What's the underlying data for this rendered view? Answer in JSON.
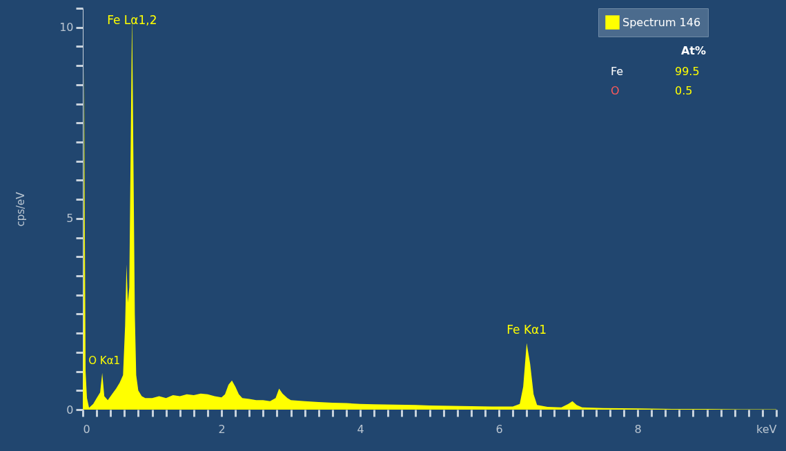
{
  "chart_data": {
    "type": "area",
    "ylabel": "cps/eV",
    "x": [
      0.0,
      0.01,
      0.02,
      0.03,
      0.04,
      0.06,
      0.09,
      0.15,
      0.2,
      0.25,
      0.28,
      0.31,
      0.36,
      0.42,
      0.48,
      0.53,
      0.58,
      0.61,
      0.63,
      0.65,
      0.67,
      0.69,
      0.71,
      0.73,
      0.75,
      0.77,
      0.8,
      0.85,
      0.9,
      1.0,
      1.1,
      1.2,
      1.3,
      1.4,
      1.5,
      1.6,
      1.7,
      1.8,
      1.9,
      2.0,
      2.05,
      2.1,
      2.15,
      2.2,
      2.25,
      2.3,
      2.4,
      2.5,
      2.6,
      2.7,
      2.78,
      2.83,
      2.88,
      2.95,
      3.0,
      3.2,
      3.4,
      3.6,
      3.8,
      4.0,
      4.2,
      4.5,
      4.8,
      5.0,
      5.3,
      5.6,
      5.9,
      6.2,
      6.3,
      6.35,
      6.4,
      6.45,
      6.5,
      6.55,
      6.7,
      6.9,
      7.0,
      7.06,
      7.12,
      7.2,
      7.5,
      8.0,
      8.5,
      9.0,
      9.5,
      10.0
    ],
    "series": [
      {
        "name": "Spectrum 146",
        "color": "#ffff00",
        "values": [
          0,
          1.8,
          9.0,
          4.5,
          1.0,
          0.3,
          0.05,
          0.15,
          0.3,
          0.45,
          0.96,
          0.35,
          0.25,
          0.4,
          0.55,
          0.7,
          0.9,
          2.2,
          3.8,
          2.8,
          3.2,
          6.8,
          10.4,
          6.5,
          2.5,
          0.9,
          0.5,
          0.35,
          0.3,
          0.3,
          0.35,
          0.3,
          0.38,
          0.35,
          0.4,
          0.38,
          0.42,
          0.4,
          0.35,
          0.32,
          0.4,
          0.65,
          0.76,
          0.6,
          0.4,
          0.3,
          0.28,
          0.25,
          0.25,
          0.22,
          0.3,
          0.55,
          0.42,
          0.3,
          0.25,
          0.22,
          0.2,
          0.18,
          0.17,
          0.15,
          0.14,
          0.13,
          0.12,
          0.11,
          0.1,
          0.09,
          0.08,
          0.08,
          0.15,
          0.6,
          1.74,
          1.2,
          0.4,
          0.12,
          0.07,
          0.06,
          0.15,
          0.22,
          0.12,
          0.06,
          0.04,
          0.03,
          0.02,
          0.02,
          0.01,
          0.01
        ]
      }
    ],
    "xlim": [
      0,
      10
    ],
    "xticks": [
      0,
      {
        "value": 0.2,
        "label": null
      },
      {
        "value": 0.4,
        "label": null
      },
      {
        "value": 0.6,
        "label": null
      },
      {
        "value": 0.8,
        "label": null
      },
      {
        "value": 1,
        "label": null
      },
      {
        "value": 1.2,
        "label": null
      },
      {
        "value": 1.4,
        "label": null
      },
      {
        "value": 1.6,
        "label": null
      },
      {
        "value": 1.8,
        "label": null
      },
      2,
      {
        "value": 2.2,
        "label": null
      },
      {
        "value": 2.4,
        "label": null
      },
      {
        "value": 2.6,
        "label": null
      },
      {
        "value": 2.8,
        "label": null
      },
      {
        "value": 3,
        "label": null
      },
      {
        "value": 3.2,
        "label": null
      },
      {
        "value": 3.4,
        "label": null
      },
      {
        "value": 3.6,
        "label": null
      },
      {
        "value": 3.8,
        "label": null
      },
      4,
      {
        "value": 4.2,
        "label": null
      },
      {
        "value": 4.4,
        "label": null
      },
      {
        "value": 4.6,
        "label": null
      },
      {
        "value": 4.8,
        "label": null
      },
      {
        "value": 5,
        "label": null
      },
      {
        "value": 5.2,
        "label": null
      },
      {
        "value": 5.4,
        "label": null
      },
      {
        "value": 5.6,
        "label": null
      },
      {
        "value": 5.8,
        "label": null
      },
      6,
      {
        "value": 6.2,
        "label": null
      },
      {
        "value": 6.4,
        "label": null
      },
      {
        "value": 6.6,
        "label": null
      },
      {
        "value": 6.8,
        "label": null
      },
      {
        "value": 7,
        "label": null
      },
      {
        "value": 7.2,
        "label": null
      },
      {
        "value": 7.4,
        "label": null
      },
      {
        "value": 7.6,
        "label": null
      },
      {
        "value": 7.8,
        "label": null
      },
      8,
      {
        "value": 8.2,
        "label": null
      },
      {
        "value": 8.4,
        "label": null
      },
      {
        "value": 8.6,
        "label": null
      },
      {
        "value": 8.8,
        "label": null
      },
      {
        "value": 9,
        "label": null
      },
      {
        "value": 9.2,
        "label": null
      },
      {
        "value": 9.4,
        "label": null
      },
      {
        "value": 9.6,
        "label": null
      },
      {
        "value": 9.8,
        "label": null
      },
      {
        "value": 10,
        "label": "keV"
      }
    ],
    "ylim": [
      0,
      10.5
    ],
    "yticks": [
      0,
      {
        "value": 0.5,
        "label": null
      },
      {
        "value": 1,
        "label": null
      },
      {
        "value": 1.5,
        "label": null
      },
      {
        "value": 2,
        "label": null
      },
      {
        "value": 2.5,
        "label": null
      },
      {
        "value": 3,
        "label": null
      },
      {
        "value": 3.5,
        "label": null
      },
      {
        "value": 4,
        "label": null
      },
      {
        "value": 4.5,
        "label": null
      },
      5,
      {
        "value": 5.5,
        "label": null
      },
      {
        "value": 6,
        "label": null
      },
      {
        "value": 6.5,
        "label": null
      },
      {
        "value": 7,
        "label": null
      },
      {
        "value": 7.5,
        "label": null
      },
      {
        "value": 8,
        "label": null
      },
      {
        "value": 8.5,
        "label": null
      },
      {
        "value": 9,
        "label": null
      },
      {
        "value": 9.5,
        "label": null
      },
      10,
      {
        "value": 10.5,
        "label": null
      }
    ],
    "annotations": [
      {
        "text": "Fe Lα1,2",
        "x": 0.71,
        "y": 10.4
      },
      {
        "text": "O Kα1",
        "x": 0.28,
        "y": 0.96
      },
      {
        "text": "Fe Kα1",
        "x": 6.4,
        "y": 1.74
      },
      "At%",
      "Fe",
      "99.5",
      "O",
      "0.5"
    ],
    "grid": false,
    "legend": "top right"
  }
}
